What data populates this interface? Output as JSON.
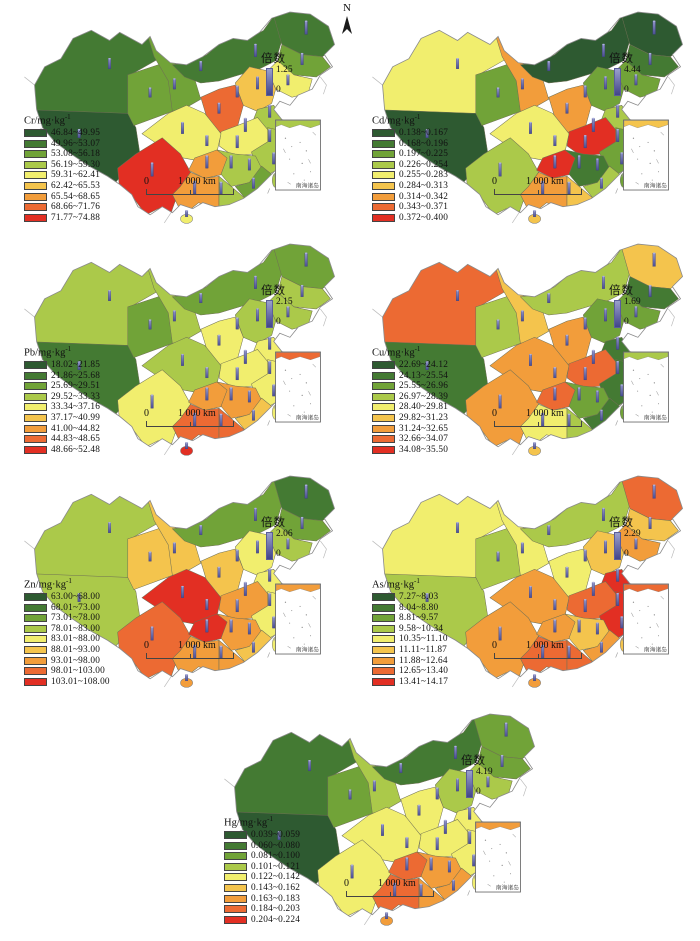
{
  "figure": {
    "north_label": "N"
  },
  "shared": {
    "multiplier_label": "倍数",
    "multiplier_min": "0",
    "scale_start": "0",
    "scale_text": "1 000 km",
    "inset_label": "南海诸岛",
    "palette": [
      "#2e5a31",
      "#447a33",
      "#71a338",
      "#abc94a",
      "#f1ee6e",
      "#f4c44d",
      "#f29d3b",
      "#ec6a33",
      "#e22f23"
    ],
    "bar_color": "#5c5fa7"
  },
  "maps": [
    {
      "id": "cr",
      "title": "Cr/mg·kg",
      "exponent": "-1",
      "multiplier_max": "1.25",
      "classes": [
        "46.84~49.95",
        "49.96~53.07",
        "53.08~56.18",
        "56.19~59.30",
        "59.31~62.41",
        "62.42~65.53",
        "65.54~68.65",
        "68.66~71.76",
        "71.77~74.88"
      ],
      "zones": {
        "xinjiang": 1,
        "tibet": 0,
        "qinghai": 2,
        "gansu": 2,
        "inner_mongolia": 1,
        "heilongjiang": 1,
        "jilin": 2,
        "liaoning": 4,
        "north_china": 5,
        "shandong": 3,
        "shaanxi": 7,
        "henan_hubei": 4,
        "east_coast": 3,
        "sichuan": 4,
        "yunnan": 8,
        "guizhou": 6,
        "hunan_jiangxi": 3,
        "southeast": 2,
        "guangxi": 6,
        "guangdong": 3,
        "hainan": 4,
        "taiwan": 3
      }
    },
    {
      "id": "cd",
      "title": "Cd/mg·kg",
      "exponent": "-1",
      "multiplier_max": "4.44",
      "classes": [
        "0.138~0.167",
        "0.168~0.196",
        "0.197~0.225",
        "0.226~0.254",
        "0.255~0.283",
        "0.284~0.313",
        "0.314~0.342",
        "0.343~0.371",
        "0.372~0.400"
      ],
      "zones": {
        "xinjiang": 4,
        "tibet": 0,
        "qinghai": 2,
        "gansu": 6,
        "inner_mongolia": 0,
        "heilongjiang": 0,
        "jilin": 1,
        "liaoning": 2,
        "north_china": 2,
        "shandong": 3,
        "shaanxi": 6,
        "henan_hubei": 8,
        "east_coast": 2,
        "sichuan": 4,
        "yunnan": 3,
        "guizhou": 8,
        "hunan_jiangxi": 1,
        "southeast": 3,
        "guangxi": 6,
        "guangdong": 5,
        "hainan": 5,
        "taiwan": 2
      }
    },
    {
      "id": "pb",
      "title": "Pb/mg·kg",
      "exponent": "-1",
      "multiplier_max": "2.15",
      "classes": [
        "18.02~21.85",
        "21.86~25.68",
        "25.69~29.51",
        "29.52~33.33",
        "33.34~37.16",
        "37.17~40.99",
        "41.00~44.82",
        "44.83~48.65",
        "48.66~52.48"
      ],
      "zones": {
        "xinjiang": 3,
        "tibet": 1,
        "qinghai": 2,
        "gansu": 3,
        "inner_mongolia": 2,
        "heilongjiang": 2,
        "jilin": 3,
        "liaoning": 3,
        "north_china": 3,
        "shandong": 4,
        "shaanxi": 4,
        "henan_hubei": 4,
        "east_coast": 4,
        "sichuan": 3,
        "yunnan": 4,
        "guizhou": 6,
        "hunan_jiangxi": 6,
        "southeast": 5,
        "guangxi": 7,
        "guangdong": 7,
        "hainan": 8,
        "taiwan": 4
      }
    },
    {
      "id": "cu",
      "title": "Cu/mg·kg",
      "exponent": "-1",
      "multiplier_max": "1.69",
      "classes": [
        "22.69~24.12",
        "24.13~25.54",
        "25.55~26.96",
        "26.97~28.39",
        "28.40~29.81",
        "29.82~31.23",
        "31.24~32.65",
        "32.66~34.07",
        "34.08~35.50"
      ],
      "zones": {
        "xinjiang": 7,
        "tibet": 1,
        "qinghai": 3,
        "gansu": 5,
        "inner_mongolia": 3,
        "heilongjiang": 5,
        "jilin": 1,
        "liaoning": 2,
        "north_china": 2,
        "shandong": 1,
        "shaanxi": 6,
        "henan_hubei": 7,
        "east_coast": 1,
        "sichuan": 6,
        "yunnan": 6,
        "guizhou": 7,
        "hunan_jiangxi": 2,
        "southeast": 1,
        "guangxi": 4,
        "guangdong": 3,
        "hainan": 5,
        "taiwan": 2
      }
    },
    {
      "id": "zn",
      "title": "Zn/mg·kg",
      "exponent": "-1",
      "multiplier_max": "2.06",
      "classes": [
        "63.00~68.00",
        "68.01~73.00",
        "73.01~78.00",
        "78.01~83.00",
        "83.01~88.00",
        "88.01~93.00",
        "93.01~98.00",
        "98.01~103.00",
        "103.01~108.00"
      ],
      "zones": {
        "xinjiang": 3,
        "tibet": 3,
        "qinghai": 5,
        "gansu": 5,
        "inner_mongolia": 2,
        "heilongjiang": 1,
        "jilin": 2,
        "liaoning": 3,
        "north_china": 4,
        "shandong": 4,
        "shaanxi": 5,
        "henan_hubei": 6,
        "east_coast": 4,
        "sichuan": 8,
        "yunnan": 7,
        "guizhou": 8,
        "hunan_jiangxi": 6,
        "southeast": 5,
        "guangxi": 6,
        "guangdong": 6,
        "hainan": 6,
        "taiwan": 4
      }
    },
    {
      "id": "as",
      "title": "As/mg·kg",
      "exponent": "-1",
      "multiplier_max": "2.29",
      "classes": [
        "7.27~8.03",
        "8.04~8.80",
        "8.81~9.57",
        "9.58~10.34",
        "10.35~11.10",
        "11.11~11.87",
        "11.88~12.64",
        "12.65~13.40",
        "13.41~14.17"
      ],
      "zones": {
        "xinjiang": 4,
        "tibet": 3,
        "qinghai": 3,
        "gansu": 4,
        "inner_mongolia": 3,
        "heilongjiang": 7,
        "jilin": 5,
        "liaoning": 6,
        "north_china": 5,
        "shandong": 8,
        "shaanxi": 4,
        "henan_hubei": 7,
        "east_coast": 8,
        "sichuan": 6,
        "yunnan": 6,
        "guizhou": 6,
        "hunan_jiangxi": 5,
        "southeast": 6,
        "guangxi": 7,
        "guangdong": 7,
        "hainan": 6,
        "taiwan": 5
      }
    },
    {
      "id": "hg",
      "title": "Hg/mg·kg",
      "exponent": "-1",
      "multiplier_max": "4.19",
      "classes": [
        "0.039~0.059",
        "0.060~0.080",
        "0.081~0.100",
        "0.101~0.121",
        "0.122~0.142",
        "0.143~0.162",
        "0.163~0.183",
        "0.184~0.203",
        "0.204~0.224"
      ],
      "zones": {
        "xinjiang": 1,
        "tibet": 0,
        "qinghai": 2,
        "gansu": 3,
        "inner_mongolia": 1,
        "heilongjiang": 2,
        "jilin": 2,
        "liaoning": 3,
        "north_china": 3,
        "shandong": 4,
        "shaanxi": 4,
        "henan_hubei": 4,
        "east_coast": 4,
        "sichuan": 4,
        "yunnan": 4,
        "guizhou": 7,
        "hunan_jiangxi": 6,
        "southeast": 6,
        "guangxi": 7,
        "guangdong": 6,
        "hainan": 6,
        "taiwan": 4
      }
    }
  ]
}
